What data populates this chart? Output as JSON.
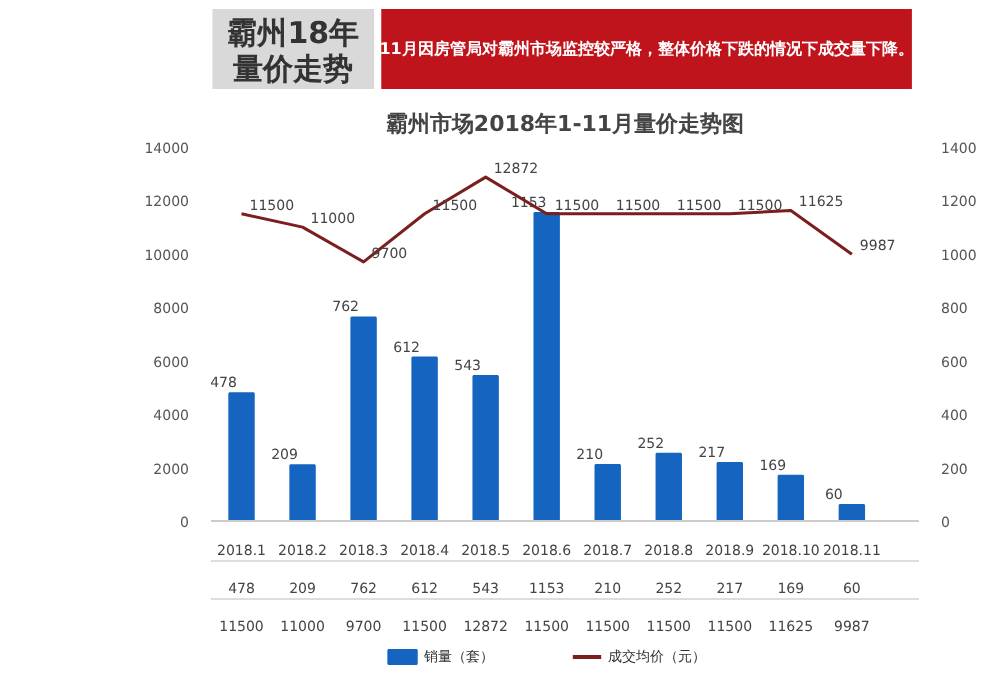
{
  "chart_data": {
    "type": "bar",
    "title": "霸州市场2018年1-11月量价走势图",
    "annotations": [
      "霸州18年量价走势",
      "11月因房管局对霸州市场监控较严格，整体价格下跌的情况下成交量下降。"
    ],
    "categories": [
      "2018.1",
      "2018.2",
      "2018.3",
      "2018.4",
      "2018.5",
      "2018.6",
      "2018.7",
      "2018.8",
      "2018.9",
      "2018.10",
      "2018.11"
    ],
    "series": [
      {
        "name": "销量（套）",
        "axis": "y2",
        "color": "#1565c0",
        "values": [
          478,
          209,
          762,
          612,
          543,
          1153,
          210,
          252,
          217,
          169,
          60
        ],
        "value_labels": [
          "478",
          "209",
          "762",
          "612",
          "543",
          "1153",
          "210",
          "252",
          "217",
          "169",
          "60"
        ]
      },
      {
        "name": "成交均价（元）",
        "type": "line",
        "color": "#7b1e1e",
        "values": [
          11500,
          11000,
          9700,
          11500,
          12872,
          11500,
          11500,
          11500,
          11500,
          11625,
          9987
        ],
        "value_labels": [
          "11500",
          "11000",
          "9700",
          "11500",
          "12872",
          "11500",
          "11500",
          "11500",
          "11500",
          "11625",
          "9987"
        ]
      }
    ],
    "ylim": [
      0,
      14000
    ],
    "yticks": [
      0,
      2000,
      4000,
      6000,
      8000,
      10000,
      12000,
      14000
    ],
    "y2lim": [
      0,
      1400
    ],
    "y2ticks": [
      0,
      200,
      400,
      600,
      800,
      1000,
      1200,
      1400
    ],
    "data_labels": true,
    "grid": false,
    "legend": "bottom",
    "marker": "none",
    "line_style": "solid"
  }
}
